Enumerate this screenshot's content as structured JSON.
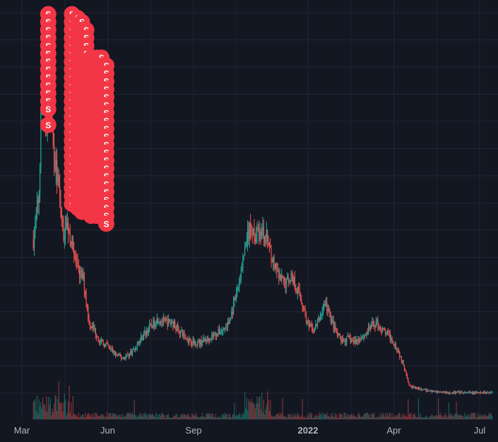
{
  "chart_data": {
    "type": "candlestick",
    "title": "",
    "xlabel": "",
    "ylabel": "",
    "grid": true,
    "x_tick_labels": [
      {
        "label": "Mar",
        "bold": false,
        "month_index": 0
      },
      {
        "label": "Jun",
        "bold": false,
        "month_index": 3
      },
      {
        "label": "Sep",
        "bold": false,
        "month_index": 6
      },
      {
        "label": "2022",
        "bold": true,
        "month_index": 10
      },
      {
        "label": "Apr",
        "bold": false,
        "month_index": 13
      },
      {
        "label": "Jul",
        "bold": false,
        "month_index": 16
      }
    ],
    "x_range_months": [
      -0.1,
      16.45
    ],
    "y_range": [
      0,
      100
    ],
    "price_path": [
      [
        0.0,
        40
      ],
      [
        0.15,
        38
      ],
      [
        0.3,
        37
      ],
      [
        0.45,
        46
      ],
      [
        0.6,
        55
      ],
      [
        0.7,
        84
      ],
      [
        0.85,
        72
      ],
      [
        0.95,
        78
      ],
      [
        1.1,
        66
      ],
      [
        1.3,
        55
      ],
      [
        1.45,
        44
      ],
      [
        1.55,
        48
      ],
      [
        1.75,
        42
      ],
      [
        1.95,
        35
      ],
      [
        2.15,
        33
      ],
      [
        2.35,
        22
      ],
      [
        2.55,
        20
      ],
      [
        2.75,
        17
      ],
      [
        3.0,
        16
      ],
      [
        3.25,
        14
      ],
      [
        3.5,
        13
      ],
      [
        3.75,
        14
      ],
      [
        4.0,
        16
      ],
      [
        4.25,
        19
      ],
      [
        4.5,
        21
      ],
      [
        4.75,
        23
      ],
      [
        5.0,
        22
      ],
      [
        5.25,
        22
      ],
      [
        5.5,
        20
      ],
      [
        5.75,
        18
      ],
      [
        6.0,
        17
      ],
      [
        6.25,
        17
      ],
      [
        6.5,
        18
      ],
      [
        6.75,
        19
      ],
      [
        7.0,
        20
      ],
      [
        7.25,
        22
      ],
      [
        7.5,
        29
      ],
      [
        7.7,
        36
      ],
      [
        7.85,
        43
      ],
      [
        8.0,
        46
      ],
      [
        8.2,
        44
      ],
      [
        8.4,
        45
      ],
      [
        8.6,
        43
      ],
      [
        8.8,
        37
      ],
      [
        9.0,
        33
      ],
      [
        9.2,
        32
      ],
      [
        9.4,
        34
      ],
      [
        9.6,
        31
      ],
      [
        9.8,
        27
      ],
      [
        10.0,
        21
      ],
      [
        10.2,
        20
      ],
      [
        10.4,
        23
      ],
      [
        10.6,
        27
      ],
      [
        10.8,
        23
      ],
      [
        11.0,
        19
      ],
      [
        11.2,
        17
      ],
      [
        11.4,
        18
      ],
      [
        11.6,
        17
      ],
      [
        11.8,
        18
      ],
      [
        12.0,
        19
      ],
      [
        12.2,
        21
      ],
      [
        12.4,
        22
      ],
      [
        12.6,
        20
      ],
      [
        12.8,
        19
      ],
      [
        13.0,
        17
      ],
      [
        13.2,
        14
      ],
      [
        13.4,
        10
      ],
      [
        13.55,
        6
      ],
      [
        13.7,
        5.5
      ],
      [
        14.0,
        5
      ],
      [
        14.5,
        4.5
      ],
      [
        15.0,
        4.3
      ],
      [
        15.5,
        4.2
      ],
      [
        16.0,
        4.2
      ],
      [
        16.45,
        4.4
      ]
    ],
    "sell_markers": {
      "label": "S",
      "color": "#f23645",
      "groups": [
        {
          "month": 0.92,
          "y_values": [
            100,
            98,
            96,
            94,
            92,
            90,
            88,
            86,
            84,
            82,
            80,
            78,
            76,
            72
          ]
        },
        {
          "month": 1.75,
          "y_values": [
            100,
            98,
            96,
            94,
            92,
            90,
            88,
            86,
            84,
            82,
            80,
            78,
            76,
            74,
            72,
            70,
            68,
            66,
            64,
            62,
            60,
            58,
            56,
            54,
            52
          ]
        },
        {
          "month": 1.95,
          "y_values": [
            99,
            97,
            95,
            93,
            91,
            89,
            87,
            85,
            83,
            81,
            79,
            77,
            75,
            73,
            71,
            69,
            67,
            65,
            63,
            61,
            59,
            57,
            55,
            53,
            51
          ]
        },
        {
          "month": 2.1,
          "y_values": [
            98,
            96,
            94,
            92,
            90,
            88,
            86,
            84,
            82,
            80,
            78,
            76,
            74,
            72,
            70,
            68,
            66,
            64,
            62,
            60,
            58,
            56,
            54,
            52,
            50
          ]
        },
        {
          "month": 2.25,
          "y_values": [
            96,
            94,
            92,
            90,
            88,
            86,
            84,
            82,
            80,
            78,
            76,
            74,
            72,
            70,
            68,
            66,
            64,
            62,
            60,
            58,
            56,
            54,
            52,
            50
          ]
        },
        {
          "month": 2.42,
          "y_values": [
            89,
            87,
            85,
            83,
            81,
            79,
            77,
            75,
            73,
            71,
            69,
            67,
            65,
            63,
            61,
            59,
            57,
            55,
            53,
            51,
            49
          ]
        },
        {
          "month": 2.6,
          "y_values": [
            89,
            87,
            85,
            83,
            81,
            79,
            77,
            75,
            73,
            71,
            69,
            67,
            65,
            63,
            61,
            59,
            57,
            55,
            53,
            51,
            49
          ]
        },
        {
          "month": 2.78,
          "y_values": [
            89,
            87,
            85,
            83,
            81,
            79,
            77,
            75,
            73,
            71,
            69,
            67,
            65,
            63,
            61,
            59,
            57,
            55,
            53,
            51,
            49
          ]
        },
        {
          "month": 2.95,
          "y_values": [
            87,
            85,
            83,
            81,
            79,
            77,
            75,
            73,
            71,
            69,
            67,
            65,
            63,
            61,
            59,
            57,
            55,
            53,
            51,
            49,
            47
          ]
        }
      ]
    },
    "colors": {
      "background": "#131722",
      "grid": "#1f2433",
      "up": "#26a69a",
      "down": "#ef5350",
      "axis_text": "#b2b5be",
      "marker": "#f23645",
      "marker_text": "#ffffff"
    }
  }
}
